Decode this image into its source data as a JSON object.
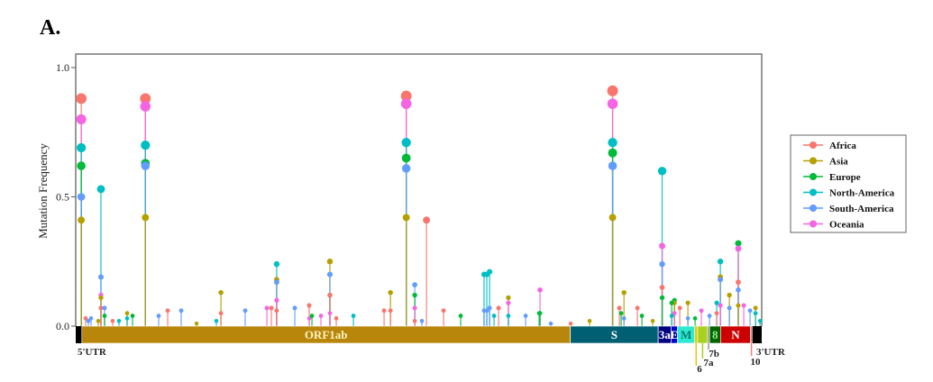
{
  "panel_label": "A.",
  "chart_data": {
    "type": "scatter",
    "style": "lollipop",
    "ylabel": "Mutation Frequency",
    "xlabel": "",
    "xlim": [
      0,
      29903
    ],
    "ylim": [
      0,
      1.0
    ],
    "yticks": [
      "0.0",
      "0.5",
      "1.0"
    ],
    "grid": false,
    "legend_placement": "right",
    "series": [
      {
        "name": "Africa",
        "color": "#F8766D"
      },
      {
        "name": "Asia",
        "color": "#B79F00"
      },
      {
        "name": "Europe",
        "color": "#00BA38"
      },
      {
        "name": "North-America",
        "color": "#00BFC4"
      },
      {
        "name": "South-America",
        "color": "#619CFF"
      },
      {
        "name": "Oceania",
        "color": "#F564E3"
      }
    ],
    "genes": [
      {
        "name": "5'UTR",
        "start": 1,
        "end": 265,
        "color": "#000000",
        "label_outside": true
      },
      {
        "name": "ORF1ab",
        "start": 266,
        "end": 21555,
        "color": "#B8860B",
        "text_color": "#FFF3C0"
      },
      {
        "name": "S",
        "start": 21563,
        "end": 25384,
        "color": "#005F73",
        "text_color": "#FFFFFF"
      },
      {
        "name": "3a",
        "start": 25393,
        "end": 25950,
        "color": "#000080",
        "text_color": "#FFFFFF"
      },
      {
        "name": "E",
        "start": 25951,
        "end": 26230,
        "color": "#0000CD",
        "text_color": "#FFFFFF"
      },
      {
        "name": "M",
        "start": 26231,
        "end": 26980,
        "color": "#2EE8D0",
        "text_color": "#007A72"
      },
      {
        "name": "6",
        "start": 26981,
        "end": 27110,
        "color": "#E8C800",
        "label_outside": true
      },
      {
        "name": "7a",
        "start": 27111,
        "end": 27540,
        "color": "#A8D020",
        "label_outside": true
      },
      {
        "name": "7b",
        "start": 27541,
        "end": 27630,
        "color": "#8FA07A",
        "label_outside": true
      },
      {
        "name": "8",
        "start": 27631,
        "end": 28110,
        "color": "#006400",
        "text_color": "#90EE90"
      },
      {
        "name": "N",
        "start": 28111,
        "end": 29410,
        "color": "#CC0000",
        "text_color": "#FFFFFF"
      },
      {
        "name": "10",
        "start": 29411,
        "end": 29500,
        "color": "#F08080",
        "label_outside": true
      },
      {
        "name": "3'UTR",
        "start": 29501,
        "end": 29903,
        "color": "#000000",
        "label_outside": true
      }
    ],
    "mutations": [
      {
        "position": 241,
        "values": {
          "Africa": 0.88,
          "Oceania": 0.8,
          "North-America": 0.69,
          "Europe": 0.62,
          "South-America": 0.5,
          "Asia": 0.41
        }
      },
      {
        "position": 1100,
        "values": {
          "North-America": 0.53,
          "South-America": 0.19,
          "Oceania": 0.12,
          "Asia": 0.11,
          "Africa": 0.07
        }
      },
      {
        "position": 3037,
        "values": {
          "Africa": 0.88,
          "Oceania": 0.85,
          "North-America": 0.7,
          "Europe": 0.63,
          "South-America": 0.62,
          "Asia": 0.42
        }
      },
      {
        "position": 6330,
        "values": {
          "Asia": 0.13,
          "Africa": 0.05
        }
      },
      {
        "position": 8760,
        "values": {
          "North-America": 0.24,
          "Asia": 0.18,
          "South-America": 0.17,
          "Oceania": 0.1,
          "Africa": 0.06
        }
      },
      {
        "position": 11080,
        "values": {
          "Asia": 0.25,
          "South-America": 0.2,
          "Europe": 0.12,
          "Africa": 0.12,
          "Oceania": 0.05
        }
      },
      {
        "position": 13720,
        "values": {
          "Asia": 0.13,
          "Africa": 0.06
        }
      },
      {
        "position": 14408,
        "values": {
          "Africa": 0.89,
          "Oceania": 0.86,
          "North-America": 0.71,
          "Europe": 0.65,
          "South-America": 0.61,
          "Asia": 0.42
        }
      },
      {
        "position": 14780,
        "values": {
          "South-America": 0.16,
          "Europe": 0.12,
          "Oceania": 0.07,
          "Africa": 0.02
        }
      },
      {
        "position": 15290,
        "values": {
          "Africa": 0.41
        }
      },
      {
        "position": 17800,
        "values": {
          "North-America": 0.2,
          "South-America": 0.06
        }
      },
      {
        "position": 17920,
        "values": {
          "North-America": 0.2,
          "South-America": 0.06
        }
      },
      {
        "position": 18040,
        "values": {
          "North-America": 0.21,
          "South-America": 0.07
        }
      },
      {
        "position": 18860,
        "values": {
          "Asia": 0.11,
          "Oceania": 0.09,
          "North-America": 0.04
        }
      },
      {
        "position": 20240,
        "values": {
          "Oceania": 0.14,
          "Europe": 0.05
        }
      },
      {
        "position": 23403,
        "values": {
          "Africa": 0.91,
          "Oceania": 0.86,
          "North-America": 0.71,
          "Europe": 0.67,
          "South-America": 0.62,
          "Asia": 0.42
        }
      },
      {
        "position": 23900,
        "values": {
          "Asia": 0.13,
          "South-America": 0.03
        }
      },
      {
        "position": 25563,
        "values": {
          "North-America": 0.6,
          "Oceania": 0.31,
          "South-America": 0.24,
          "Africa": 0.15,
          "Europe": 0.11
        }
      },
      {
        "position": 26100,
        "values": {
          "Europe": 0.1,
          "Asia": 0.09,
          "Oceania": 0.05
        }
      },
      {
        "position": 28100,
        "values": {
          "North-America": 0.25,
          "Asia": 0.19,
          "South-America": 0.18,
          "Oceania": 0.08
        }
      },
      {
        "position": 28881,
        "values": {
          "Europe": 0.32,
          "Oceania": 0.3,
          "Africa": 0.17,
          "South-America": 0.14,
          "Asia": 0.08
        }
      },
      {
        "position": 432,
        "values": {
          "Africa": 0.03
        }
      },
      {
        "position": 550,
        "values": {
          "South-America": 0.02
        }
      },
      {
        "position": 668,
        "values": {
          "South-America": 0.03
        }
      },
      {
        "position": 983,
        "values": {
          "Asia": 0.02
        }
      },
      {
        "position": 1258,
        "values": {
          "South-America": 0.07,
          "Europe": 0.04
        }
      },
      {
        "position": 1611,
        "values": {
          "Africa": 0.02
        }
      },
      {
        "position": 1886,
        "values": {
          "North-America": 0.02
        }
      },
      {
        "position": 2240,
        "values": {
          "Asia": 0.05,
          "North-America": 0.03
        }
      },
      {
        "position": 2476,
        "values": {
          "Europe": 0.04
        }
      },
      {
        "position": 3616,
        "values": {
          "South-America": 0.04
        }
      },
      {
        "position": 4009,
        "values": {
          "Africa": 0.06
        }
      },
      {
        "position": 4599,
        "values": {
          "South-America": 0.06
        }
      },
      {
        "position": 5267,
        "values": {
          "Asia": 0.01
        }
      },
      {
        "position": 6131,
        "values": {
          "North-America": 0.02
        }
      },
      {
        "position": 7388,
        "values": {
          "South-America": 0.06
        }
      },
      {
        "position": 8332,
        "values": {
          "Oceania": 0.07
        }
      },
      {
        "position": 8528,
        "values": {
          "Africa": 0.07
        }
      },
      {
        "position": 9550,
        "values": {
          "South-America": 0.07
        }
      },
      {
        "position": 10179,
        "values": {
          "Africa": 0.08,
          "Oceania": 0.03
        }
      },
      {
        "position": 10297,
        "values": {
          "Europe": 0.04
        }
      },
      {
        "position": 10690,
        "values": {
          "Oceania": 0.04
        }
      },
      {
        "position": 11358,
        "values": {
          "Africa": 0.03
        }
      },
      {
        "position": 12104,
        "values": {
          "North-America": 0.04
        }
      },
      {
        "position": 13441,
        "values": {
          "Africa": 0.06
        }
      },
      {
        "position": 15091,
        "values": {
          "South-America": 0.02
        }
      },
      {
        "position": 16034,
        "values": {
          "Africa": 0.06
        }
      },
      {
        "position": 16781,
        "values": {
          "Europe": 0.04
        }
      },
      {
        "position": 18235,
        "values": {
          "North-America": 0.04
        }
      },
      {
        "position": 18432,
        "values": {
          "Africa": 0.07
        }
      },
      {
        "position": 19611,
        "values": {
          "South-America": 0.04
        }
      },
      {
        "position": 20200,
        "values": {
          "Europe": 0.05
        }
      },
      {
        "position": 20711,
        "values": {
          "South-America": 0.01
        }
      },
      {
        "position": 21576,
        "values": {
          "Africa": 0.01
        }
      },
      {
        "position": 22401,
        "values": {
          "Asia": 0.02
        }
      },
      {
        "position": 23698,
        "values": {
          "Africa": 0.07
        }
      },
      {
        "position": 23776,
        "values": {
          "Europe": 0.05
        }
      },
      {
        "position": 24484,
        "values": {
          "Africa": 0.07
        }
      },
      {
        "position": 24680,
        "values": {
          "Europe": 0.04
        }
      },
      {
        "position": 25152,
        "values": {
          "Asia": 0.02
        }
      },
      {
        "position": 25978,
        "values": {
          "Europe": 0.09,
          "North-America": 0.04
        }
      },
      {
        "position": 26332,
        "values": {
          "Africa": 0.07
        }
      },
      {
        "position": 26685,
        "values": {
          "Asia": 0.09,
          "South-America": 0.03
        }
      },
      {
        "position": 26999,
        "values": {
          "Europe": 0.03
        }
      },
      {
        "position": 27274,
        "values": {
          "Oceania": 0.06
        }
      },
      {
        "position": 27628,
        "values": {
          "South-America": 0.04
        }
      },
      {
        "position": 27942,
        "values": {
          "North-America": 0.09,
          "Africa": 0.05
        }
      },
      {
        "position": 28493,
        "values": {
          "South-America": 0.07,
          "Asia": 0.12
        }
      },
      {
        "position": 29121,
        "values": {
          "Oceania": 0.08
        }
      },
      {
        "position": 29396,
        "values": {
          "South-America": 0.06
        }
      },
      {
        "position": 29632,
        "values": {
          "Asia": 0.07,
          "North-America": 0.05
        }
      },
      {
        "position": 29829,
        "values": {
          "North-America": 0.02
        }
      }
    ]
  }
}
